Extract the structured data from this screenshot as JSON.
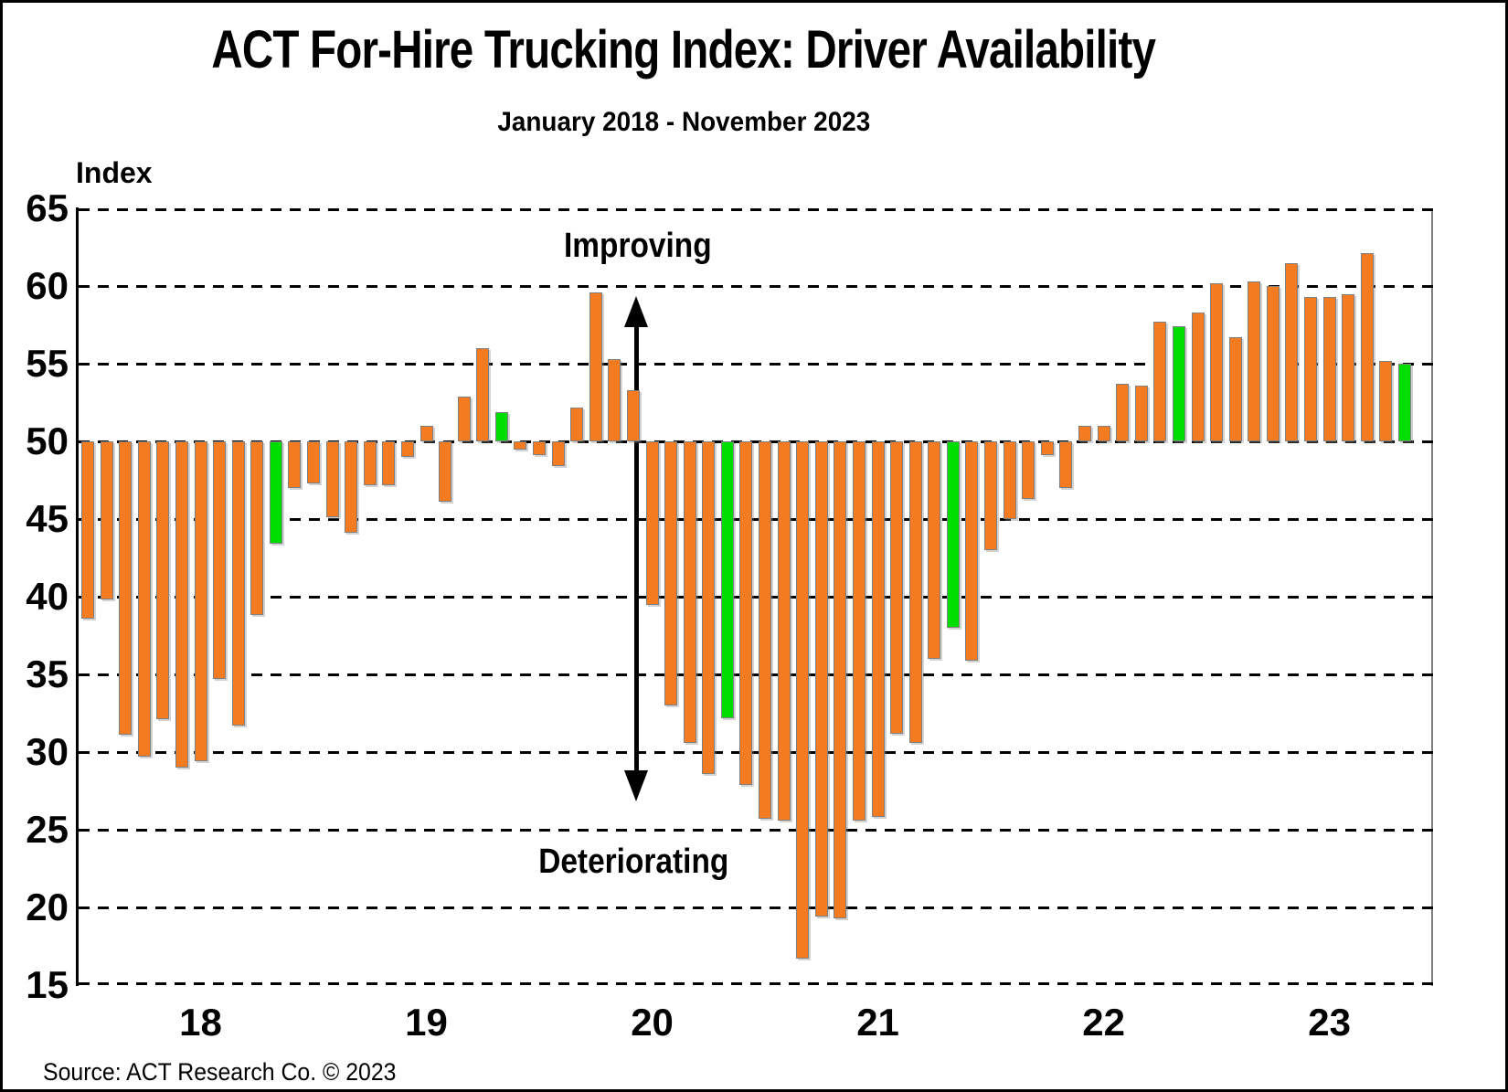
{
  "title": "ACT For-Hire Trucking Index: Driver Availability",
  "subtitle": "January 2018 - November 2023",
  "y_axis_label": "Index",
  "annotations": {
    "improving": "Improving",
    "deteriorating": "Deteriorating"
  },
  "source": "Source: ACT Research Co. © 2023",
  "colors": {
    "bar_orange": "#F47B20",
    "bar_green": "#00DD00",
    "bar_border": "#808080",
    "axis": "#000000"
  },
  "chart_data": {
    "type": "bar",
    "title": "ACT For-Hire Trucking Index: Driver Availability",
    "subtitle": "January 2018 - November 2023",
    "ylabel": "Index",
    "baseline": 50,
    "ylim": [
      15,
      65
    ],
    "yticks": [
      65,
      60,
      55,
      50,
      45,
      40,
      35,
      30,
      25,
      20,
      15
    ],
    "xtick_labels": [
      "18",
      "19",
      "20",
      "21",
      "22",
      "23"
    ],
    "grid": "dashed horizontal",
    "legend": "none",
    "note": "Orange bars rise above or fall below the 50 baseline; November of each year is highlighted green",
    "months": [
      "Jan-18",
      "Feb-18",
      "Mar-18",
      "Apr-18",
      "May-18",
      "Jun-18",
      "Jul-18",
      "Aug-18",
      "Sep-18",
      "Oct-18",
      "Nov-18",
      "Dec-18",
      "Jan-19",
      "Feb-19",
      "Mar-19",
      "Apr-19",
      "May-19",
      "Jun-19",
      "Jul-19",
      "Aug-19",
      "Sep-19",
      "Oct-19",
      "Nov-19",
      "Dec-19",
      "Jan-20",
      "Feb-20",
      "Mar-20",
      "Apr-20",
      "May-20",
      "Jun-20",
      "Jul-20",
      "Aug-20",
      "Sep-20",
      "Oct-20",
      "Nov-20",
      "Dec-20",
      "Jan-21",
      "Feb-21",
      "Mar-21",
      "Apr-21",
      "May-21",
      "Jun-21",
      "Jul-21",
      "Aug-21",
      "Sep-21",
      "Oct-21",
      "Nov-21",
      "Dec-21",
      "Jan-22",
      "Feb-22",
      "Mar-22",
      "Apr-22",
      "May-22",
      "Jun-22",
      "Jul-22",
      "Aug-22",
      "Sep-22",
      "Oct-22",
      "Nov-22",
      "Dec-22",
      "Jan-23",
      "Feb-23",
      "Mar-23",
      "Apr-23",
      "May-23",
      "Jun-23",
      "Jul-23",
      "Aug-23",
      "Sep-23",
      "Oct-23",
      "Nov-23"
    ],
    "values": [
      38.6,
      39.8,
      31.1,
      29.7,
      32.1,
      29.0,
      29.4,
      34.7,
      31.7,
      38.8,
      43.4,
      47.0,
      47.3,
      45.1,
      44.1,
      47.2,
      47.2,
      49.0,
      51.0,
      46.1,
      52.9,
      56.0,
      51.9,
      49.5,
      49.1,
      48.4,
      52.2,
      59.6,
      55.3,
      53.3,
      39.5,
      33.0,
      30.6,
      28.6,
      32.2,
      27.9,
      25.7,
      25.6,
      16.7,
      19.4,
      19.3,
      25.6,
      25.8,
      31.2,
      30.6,
      36.0,
      38.0,
      35.9,
      43.0,
      45.0,
      46.3,
      49.1,
      47.0,
      51.0,
      51.0,
      53.7,
      53.6,
      57.7,
      57.4,
      58.3,
      60.2,
      56.7,
      60.3,
      60.0,
      61.5,
      59.3,
      59.3,
      59.5,
      62.1,
      55.2,
      55.0
    ],
    "green_indices": [
      10,
      22,
      34,
      46,
      58,
      70
    ]
  }
}
